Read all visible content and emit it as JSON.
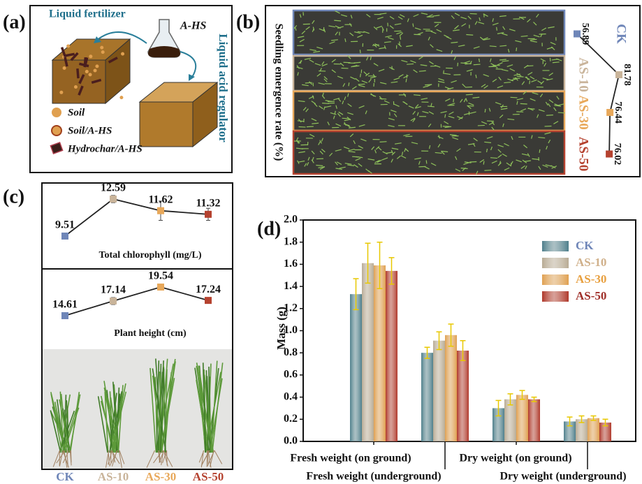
{
  "panel_labels": [
    "(a)",
    "(b)",
    "(c)",
    "(d)"
  ],
  "diagram": {
    "liquid_fertilizer": "Liquid fertilizer",
    "flask": "A-HS",
    "regulator": "Liquid acid regulator",
    "legend": [
      "Soil",
      "Soil/A-HS",
      "Hydrochar/A-HS"
    ]
  },
  "photo_labels": [
    "CK",
    "AS-10",
    "AS-30",
    "AS-50"
  ],
  "photo_label_colors": [
    "#6f86b8",
    "#c9b49a",
    "#e8a85a",
    "#b5422f"
  ],
  "chart_data": [
    {
      "type": "line",
      "orientation": "vertical",
      "y_label": "Seedling emergence rate (%)",
      "categories": [
        "CK",
        "AS-10",
        "AS-30",
        "AS-50"
      ],
      "category_colors": [
        "#6f86b8",
        "#c9b49a",
        "#e8a85a",
        "#b5422f"
      ],
      "values": [
        56.89,
        81.78,
        76.44,
        76.02
      ],
      "line_color": "#222222"
    },
    {
      "type": "line",
      "title": "Total chlorophyll (mg/L)",
      "values": [
        9.51,
        12.59,
        11.62,
        11.32
      ],
      "errors": [
        0,
        0.3,
        0.8,
        0.5
      ],
      "point_colors": [
        "#6f86b8",
        "#c9b49a",
        "#e8a85a",
        "#b5422f"
      ],
      "line_color": "#222222"
    },
    {
      "type": "line",
      "title": "Plant height (cm)",
      "values": [
        14.61,
        17.14,
        19.54,
        17.24
      ],
      "errors": [
        0,
        0.6,
        0.5,
        0.2
      ],
      "point_colors": [
        "#6f86b8",
        "#c9b49a",
        "#e8a85a",
        "#b5422f"
      ],
      "line_color": "#222222"
    },
    {
      "type": "bar",
      "y_label": "Mass (g)",
      "categories": [
        "Fresh weight (on ground)",
        "Fresh weight (underground)",
        "Dry weight (on ground)",
        "Dry weight (underground)"
      ],
      "series": [
        {
          "name": "CK",
          "color": "#4e7f8c",
          "text_color": "#6f86b8",
          "values": [
            1.33,
            0.8,
            0.3,
            0.18
          ],
          "errors": [
            0.14,
            0.05,
            0.07,
            0.04
          ]
        },
        {
          "name": "AS-10",
          "color": "#b8ab94",
          "text_color": "#d0b08a",
          "values": [
            1.61,
            0.91,
            0.38,
            0.2
          ],
          "errors": [
            0.18,
            0.08,
            0.05,
            0.03
          ]
        },
        {
          "name": "AS-30",
          "color": "#e0a050",
          "text_color": "#e8a040",
          "values": [
            1.59,
            0.96,
            0.42,
            0.21
          ],
          "errors": [
            0.21,
            0.1,
            0.04,
            0.02
          ]
        },
        {
          "name": "AS-50",
          "color": "#b0382a",
          "text_color": "#a0302a",
          "values": [
            1.54,
            0.82,
            0.38,
            0.17
          ],
          "errors": [
            0.12,
            0.09,
            0.02,
            0.03
          ]
        }
      ],
      "error_color": "#e8c800",
      "ylim": [
        0,
        2.0
      ],
      "yticks": [
        {
          "value": 0,
          "label": "0.0"
        },
        0.2,
        0.4,
        0.6,
        0.8,
        {
          "value": 1,
          "label": "1.0"
        },
        1.2,
        1.4,
        1.6,
        1.8,
        {
          "value": 2,
          "label": "2.0"
        }
      ],
      "legend": "upper right"
    }
  ]
}
